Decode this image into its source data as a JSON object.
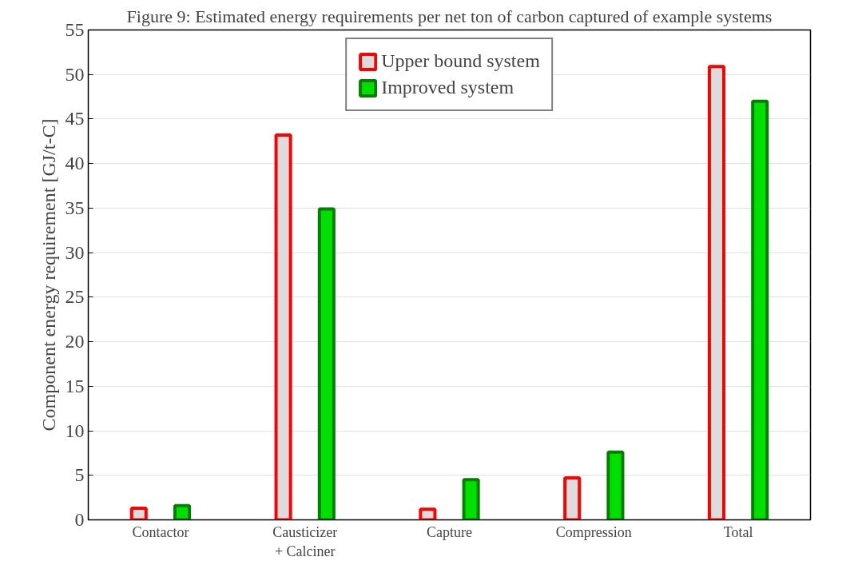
{
  "chart_data": {
    "type": "bar",
    "title": "Figure 9: Estimated energy requirements per net ton of carbon captured of example systems",
    "ylabel": "Component energy requirement [GJ/t-C]",
    "categories": [
      "Contactor",
      "Causticizer\n+ Calciner",
      "Capture",
      "Compression",
      "Total"
    ],
    "series": [
      {
        "name": "Upper bound system",
        "color": "#ff0000",
        "values": [
          1.3,
          43.2,
          1.2,
          4.7,
          50.9
        ]
      },
      {
        "name": "Improved system",
        "color": "#00e000",
        "values": [
          1.6,
          34.9,
          4.5,
          7.6,
          47.0
        ]
      }
    ],
    "ylim": [
      0,
      55
    ],
    "yticks": [
      0,
      5,
      10,
      15,
      20,
      25,
      30,
      35,
      40,
      45,
      50,
      55
    ],
    "grid": "y",
    "legend": "top"
  }
}
